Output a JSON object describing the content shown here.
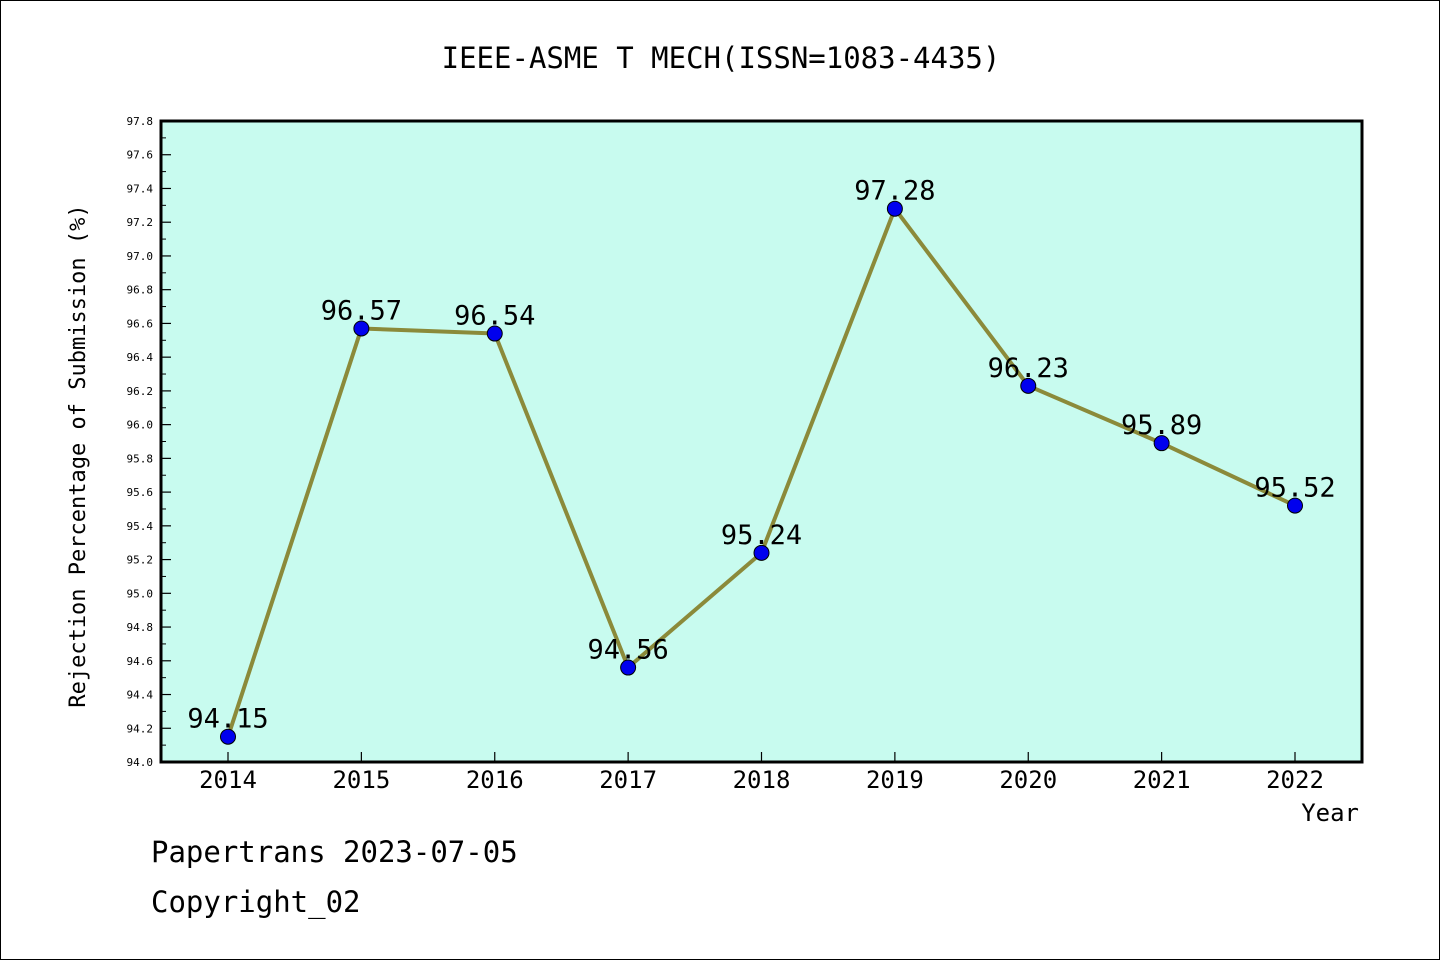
{
  "chart_data": {
    "type": "line",
    "title": "IEEE-ASME T MECH(ISSN=1083-4435)",
    "xlabel": "Year",
    "ylabel": "Rejection Percentage of Submission (%)",
    "categories": [
      "2014",
      "2015",
      "2016",
      "2017",
      "2018",
      "2019",
      "2020",
      "2021",
      "2022"
    ],
    "series": [
      {
        "values": [
          94.15,
          96.57,
          96.54,
          94.56,
          95.24,
          97.28,
          96.23,
          95.89,
          95.52
        ],
        "data_labels": [
          "94.15",
          "96.57",
          "96.54",
          "94.56",
          "95.24",
          "97.28",
          "96.23",
          "95.89",
          "95.52"
        ],
        "line_color": "#8b8a3a",
        "marker_color": "#0000ee"
      }
    ],
    "ylim": [
      94.0,
      97.8
    ],
    "yticks": [
      "94.0",
      "94.2",
      "94.4",
      "94.6",
      "94.8",
      "95.0",
      "95.2",
      "95.4",
      "95.6",
      "95.8",
      "96.0",
      "96.2",
      "96.4",
      "96.6",
      "96.8",
      "97.0",
      "97.2",
      "97.4",
      "97.6",
      "97.8"
    ],
    "plot_background": "#c8fbef",
    "grid": false,
    "legend": "none"
  },
  "footer": {
    "line1": "Papertrans 2023-07-05",
    "line2": "Copyright_02"
  }
}
